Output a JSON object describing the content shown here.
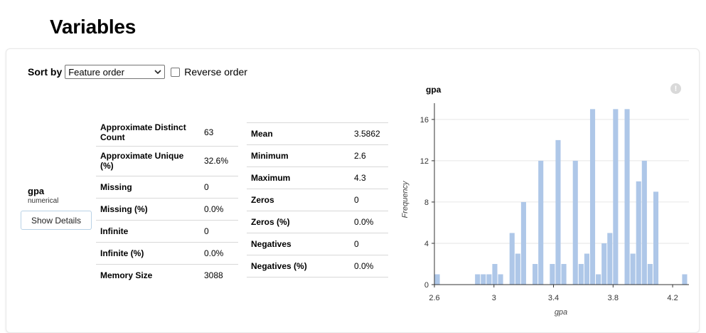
{
  "page": {
    "title": "Variables"
  },
  "sort": {
    "label": "Sort by",
    "selected": "Feature order",
    "reverse_label": "Reverse order"
  },
  "variable": {
    "name": "gpa",
    "type": "numerical",
    "details_button": "Show Details"
  },
  "stats_left": [
    {
      "label": "Approximate Distinct Count",
      "value": "63"
    },
    {
      "label": "Approximate Unique (%)",
      "value": "32.6%"
    },
    {
      "label": "Missing",
      "value": "0"
    },
    {
      "label": "Missing (%)",
      "value": "0.0%"
    },
    {
      "label": "Infinite",
      "value": "0"
    },
    {
      "label": "Infinite (%)",
      "value": "0.0%"
    },
    {
      "label": "Memory Size",
      "value": "3088"
    }
  ],
  "stats_right": [
    {
      "label": "Mean",
      "value": "3.5862"
    },
    {
      "label": "Minimum",
      "value": "2.6"
    },
    {
      "label": "Maximum",
      "value": "4.3"
    },
    {
      "label": "Zeros",
      "value": "0"
    },
    {
      "label": "Zeros (%)",
      "value": "0.0%"
    },
    {
      "label": "Negatives",
      "value": "0"
    },
    {
      "label": "Negatives (%)",
      "value": "0.0%"
    }
  ],
  "icons": {
    "warning": "exclamation-circle-icon",
    "dropdown": "chevron-down-icon"
  },
  "colors": {
    "bar": "#aec7e8",
    "axis": "#333333",
    "grid": "#e6e6e6"
  },
  "chart_data": {
    "type": "bar",
    "title": "gpa",
    "xlabel": "gpa",
    "ylabel": "Frequency",
    "xlim": [
      2.6,
      4.3
    ],
    "ylim": [
      0,
      17
    ],
    "xticks": [
      "2.6",
      "3",
      "3.4",
      "3.8",
      "4.2"
    ],
    "xtick_values": [
      2.6,
      3.0,
      3.4,
      3.8,
      4.2
    ],
    "yticks": [
      "0",
      "4",
      "8",
      "12",
      "16"
    ],
    "ytick_values": [
      0,
      4,
      8,
      12,
      16
    ],
    "grid": true,
    "bin_width": 0.0386,
    "bin_starts": [
      2.6,
      2.6386,
      2.6773,
      2.7159,
      2.7545,
      2.7932,
      2.8318,
      2.8705,
      2.9091,
      2.9477,
      2.9864,
      3.025,
      3.0636,
      3.1023,
      3.1409,
      3.1795,
      3.2182,
      3.2568,
      3.2955,
      3.3341,
      3.3727,
      3.4114,
      3.45,
      3.4886,
      3.5273,
      3.5659,
      3.6045,
      3.6432,
      3.6818,
      3.7205,
      3.7591,
      3.7977,
      3.8364,
      3.875,
      3.9136,
      3.9523,
      3.9909,
      4.0295,
      4.0682,
      4.1068,
      4.1455,
      4.1841,
      4.2227,
      4.2614
    ],
    "values": [
      1,
      0,
      0,
      0,
      0,
      0,
      0,
      1,
      1,
      1,
      2,
      1,
      0,
      5,
      3,
      8,
      0,
      2,
      12,
      0,
      2,
      14,
      2,
      0,
      12,
      2,
      3,
      17,
      1,
      4,
      5,
      17,
      0,
      17,
      3,
      10,
      12,
      2,
      9,
      0,
      0,
      0,
      0,
      1
    ]
  }
}
